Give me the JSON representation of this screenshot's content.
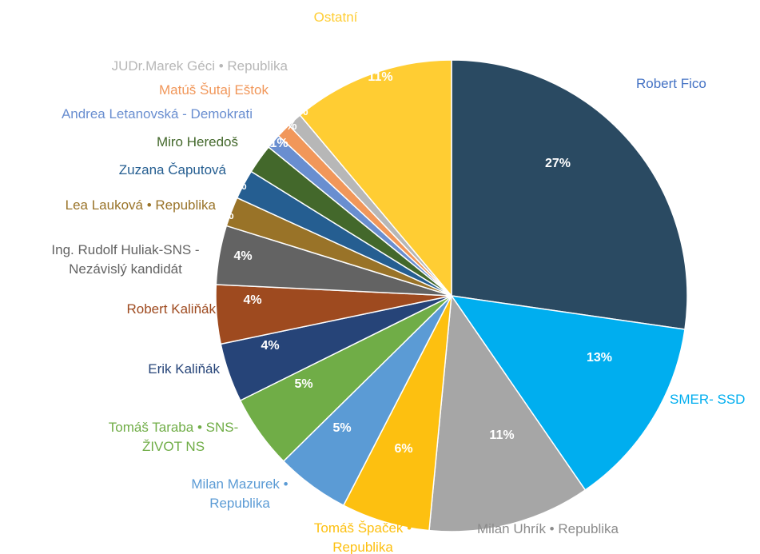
{
  "chart_data": {
    "type": "pie",
    "categories": [
      "Robert Fico",
      "SMER- SSD",
      "Milan Uhrík • Republika",
      "Tomáš Špaček •\nRepublika",
      "Milan Mazurek •\nRepublika",
      "Tomáš Taraba • SNS-\nŽIVOT NS",
      "Erik Kaliňák",
      "Robert Kaliňák",
      "Ing. Rudolf Huliak-SNS -\nNezávislý kandidát",
      "Lea Lauková • Republika",
      "Zuzana Čaputová",
      "Miro Heredoš",
      "Andrea Letanovská - Demokrati",
      "Matúš Šutaj Eštok",
      "JUDr.Marek Géci • Republika",
      "Ostatní"
    ],
    "values": [
      27,
      13,
      11,
      6,
      5,
      5,
      4,
      4,
      4,
      2,
      2,
      2,
      1,
      1,
      1,
      11
    ],
    "value_labels": [
      "27%",
      "13%",
      "11%",
      "6%",
      "5%",
      "5%",
      "4%",
      "4%",
      "4%",
      "2%",
      "2%",
      "2%",
      "1%",
      "1%",
      "1%",
      "11%"
    ],
    "colors": [
      "#2a4a62",
      "#00aeef",
      "#a6a6a6",
      "#fdc010",
      "#5b9bd5",
      "#70ad47",
      "#264478",
      "#9e4a1f",
      "#636363",
      "#997328",
      "#255e91",
      "#43682b",
      "#698ed0",
      "#f1975a",
      "#b7b7b7",
      "#ffcd33"
    ],
    "label_colors": [
      "#4472c4",
      "#00aeef",
      "#8c8c8c",
      "#fdc010",
      "#5b9bd5",
      "#70ad47",
      "#264478",
      "#9e4a1f",
      "#636363",
      "#997328",
      "#255e91",
      "#43682b",
      "#698ed0",
      "#f1975a",
      "#b7b7b7",
      "#ffcd33"
    ]
  }
}
